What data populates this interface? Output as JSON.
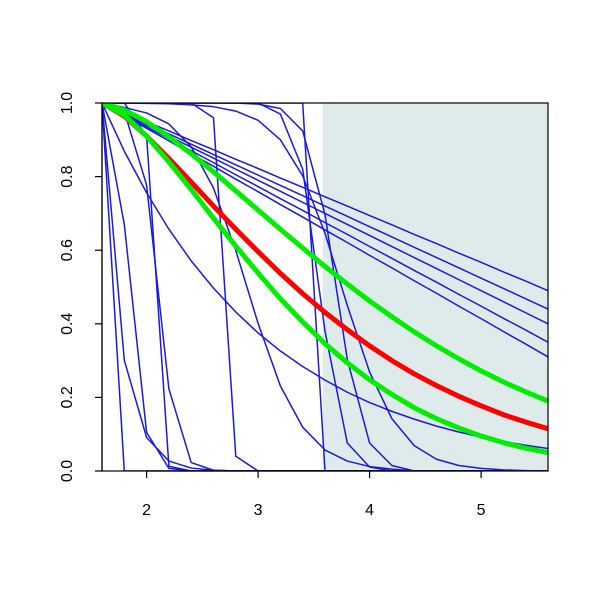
{
  "chart_data": {
    "type": "line",
    "x": [
      1.6,
      1.8,
      2.0,
      2.2,
      2.4,
      2.6,
      2.8,
      3.0,
      3.2,
      3.4,
      3.6,
      3.8,
      4.0,
      4.2,
      4.4,
      4.6,
      4.8,
      5.0,
      5.2,
      5.4,
      5.6
    ],
    "xlim": [
      1.6,
      5.6
    ],
    "xticks": [
      2,
      3,
      4,
      5
    ],
    "ylim": [
      0,
      1
    ],
    "yticks": [
      {
        "value": 0,
        "label": "0.0"
      },
      0.2,
      0.4,
      0.6,
      0.8,
      {
        "value": 1,
        "label": "1.0"
      }
    ],
    "shade_x": [
      3.58,
      5.6
    ],
    "shade_color": "#dfebeb",
    "series": [
      {
        "color": "#1a1ae0",
        "width": 1.5,
        "values": [
          1,
          0.975,
          0.949,
          0.924,
          0.898,
          0.873,
          0.847,
          0.822,
          0.796,
          0.771,
          0.745,
          0.72,
          0.694,
          0.669,
          0.643,
          0.618,
          0.592,
          0.567,
          0.541,
          0.516,
          0.49
        ]
      },
      {
        "color": "#1a1ae0",
        "width": 1.5,
        "values": [
          1,
          0.972,
          0.944,
          0.916,
          0.888,
          0.86,
          0.832,
          0.804,
          0.776,
          0.748,
          0.72,
          0.692,
          0.664,
          0.636,
          0.608,
          0.58,
          0.552,
          0.524,
          0.496,
          0.468,
          0.44
        ]
      },
      {
        "color": "#1a1ae0",
        "width": 1.5,
        "values": [
          1,
          0.97,
          0.94,
          0.91,
          0.88,
          0.85,
          0.82,
          0.79,
          0.76,
          0.73,
          0.7,
          0.67,
          0.64,
          0.61,
          0.58,
          0.55,
          0.52,
          0.49,
          0.46,
          0.43,
          0.4
        ]
      },
      {
        "color": "#1a1ae0",
        "width": 1.5,
        "values": [
          1,
          0.968,
          0.935,
          0.903,
          0.87,
          0.838,
          0.805,
          0.773,
          0.74,
          0.708,
          0.675,
          0.643,
          0.61,
          0.578,
          0.545,
          0.513,
          0.48,
          0.448,
          0.415,
          0.383,
          0.35
        ]
      },
      {
        "color": "#1a1ae0",
        "width": 1.5,
        "values": [
          1,
          0.966,
          0.931,
          0.897,
          0.862,
          0.828,
          0.793,
          0.759,
          0.724,
          0.69,
          0.655,
          0.621,
          0.586,
          0.552,
          0.517,
          0.483,
          0.448,
          0.414,
          0.379,
          0.345,
          0.31
        ]
      },
      {
        "color": "#1a1ae0",
        "width": 1.5,
        "values": [
          1,
          0.869,
          0.756,
          0.657,
          0.571,
          0.497,
          0.432,
          0.375,
          0.326,
          0.284,
          0.247,
          0.214,
          0.186,
          0.162,
          0.141,
          0.122,
          0.106,
          0.092,
          0.08,
          0.07,
          0.061
        ]
      },
      {
        "color": "#1a1ae0",
        "width": 1.5,
        "values": [
          1,
          0,
          0,
          0,
          0,
          0,
          0,
          0,
          0,
          0,
          0,
          0,
          0,
          0,
          0,
          0,
          0,
          0,
          0,
          0,
          0
        ]
      },
      {
        "color": "#1a1ae0",
        "width": 1.5,
        "values": [
          1,
          1,
          0.91,
          0.013,
          0,
          0,
          0,
          0,
          0,
          0,
          0,
          0,
          0,
          0,
          0,
          0,
          0,
          0,
          0,
          0,
          0
        ]
      },
      {
        "color": "#1a1ae0",
        "width": 1.5,
        "values": [
          1,
          1,
          1,
          1,
          1,
          0.96,
          0.04,
          0,
          0,
          0,
          0,
          0,
          0,
          0,
          0,
          0,
          0,
          0,
          0,
          0,
          0
        ]
      },
      {
        "color": "#1a1ae0",
        "width": 1.5,
        "values": [
          1,
          1,
          1,
          1,
          1,
          1,
          1,
          1,
          1,
          1,
          0,
          0,
          0,
          0,
          0,
          0,
          0,
          0,
          0,
          0,
          0
        ]
      },
      {
        "color": "#1a1ae0",
        "width": 1.5,
        "values": [
          1,
          1,
          1,
          1,
          1,
          1,
          1,
          1,
          0.97,
          0.82,
          0.38,
          0.076,
          0.011,
          0,
          0,
          0,
          0,
          0,
          0,
          0,
          0
        ]
      },
      {
        "color": "#1a1ae0",
        "width": 1.5,
        "values": [
          1,
          1,
          1,
          1,
          1,
          1,
          1,
          0.997,
          0.985,
          0.924,
          0.697,
          0.303,
          0.076,
          0.015,
          0,
          0,
          0,
          0,
          0,
          0,
          0
        ]
      },
      {
        "color": "#1a1ae0",
        "width": 1.5,
        "values": [
          1,
          0.988,
          0.973,
          0.943,
          0.881,
          0.769,
          0.599,
          0.401,
          0.231,
          0.119,
          0.057,
          0.027,
          0.012,
          0.005,
          0,
          0,
          0,
          0,
          0,
          0,
          0
        ]
      },
      {
        "color": "#1a1ae0",
        "width": 1.5,
        "values": [
          1,
          0.301,
          0.091,
          0.027,
          0.008,
          0.002,
          0,
          0,
          0,
          0,
          0,
          0,
          0,
          0,
          0,
          0,
          0,
          0,
          0,
          0,
          0
        ]
      },
      {
        "color": "#1a1ae0",
        "width": 1.5,
        "values": [
          1,
          0.67,
          0.105,
          0.007,
          0,
          0,
          0,
          0,
          0,
          0,
          0,
          0,
          0,
          0,
          0,
          0,
          0,
          0,
          0,
          0,
          0
        ]
      },
      {
        "color": "#1a1ae0",
        "width": 1.5,
        "values": [
          1,
          0.977,
          0.777,
          0.223,
          0.023,
          0.002,
          0,
          0,
          0,
          0,
          0,
          0,
          0,
          0,
          0,
          0,
          0,
          0,
          0,
          0,
          0
        ]
      },
      {
        "color": "#1a1ae0",
        "width": 1.5,
        "values": [
          1,
          1,
          0.999,
          0.998,
          0.995,
          0.99,
          0.978,
          0.953,
          0.9,
          0.802,
          0.646,
          0.45,
          0.269,
          0.142,
          0.069,
          0.032,
          0.015,
          0.007,
          0.003,
          0.001,
          0
        ]
      },
      {
        "color": "#ff0000",
        "width": 5,
        "values": [
          1,
          0.964,
          0.91,
          0.849,
          0.785,
          0.72,
          0.657,
          0.596,
          0.537,
          0.482,
          0.431,
          0.384,
          0.34,
          0.3,
          0.264,
          0.232,
          0.203,
          0.177,
          0.153,
          0.133,
          0.115
        ]
      },
      {
        "color": "#00ee00",
        "width": 5,
        "values": [
          1,
          0.981,
          0.949,
          0.908,
          0.862,
          0.813,
          0.761,
          0.709,
          0.657,
          0.606,
          0.556,
          0.508,
          0.462,
          0.419,
          0.378,
          0.34,
          0.305,
          0.272,
          0.242,
          0.215,
          0.19
        ]
      },
      {
        "color": "#00ee00",
        "width": 5,
        "values": [
          1,
          0.967,
          0.91,
          0.84,
          0.765,
          0.687,
          0.611,
          0.538,
          0.468,
          0.405,
          0.346,
          0.294,
          0.248,
          0.208,
          0.172,
          0.142,
          0.117,
          0.095,
          0.077,
          0.062,
          0.05
        ]
      }
    ]
  }
}
